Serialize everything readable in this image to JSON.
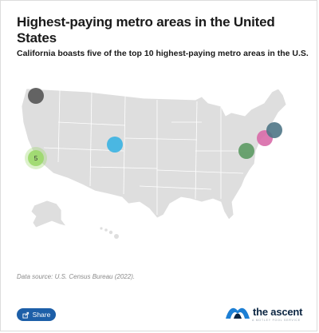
{
  "title": "Highest-paying metro areas in the United States",
  "subtitle": "California boasts five of the top 10 highest-paying metro areas in the U.S.",
  "map": {
    "markers": [
      {
        "region": "Pacific Northwest",
        "label": "",
        "color": "#555555"
      },
      {
        "region": "California",
        "label": "5",
        "color": "#9bd86a"
      },
      {
        "region": "Colorado",
        "label": "",
        "color": "#3ab3e2"
      },
      {
        "region": "Washington, D.C. area",
        "label": "",
        "color": "#5c9a63"
      },
      {
        "region": "New York area",
        "label": "",
        "color": "#d86aa8"
      },
      {
        "region": "Boston area",
        "label": "",
        "color": "#4f7686"
      }
    ]
  },
  "source": "Data source: U.S. Census Bureau (2022).",
  "share_label": "Share",
  "brand": {
    "name": "the ascent",
    "tagline": "A Motley Fool service",
    "logo_color": "#1d7fd4"
  }
}
